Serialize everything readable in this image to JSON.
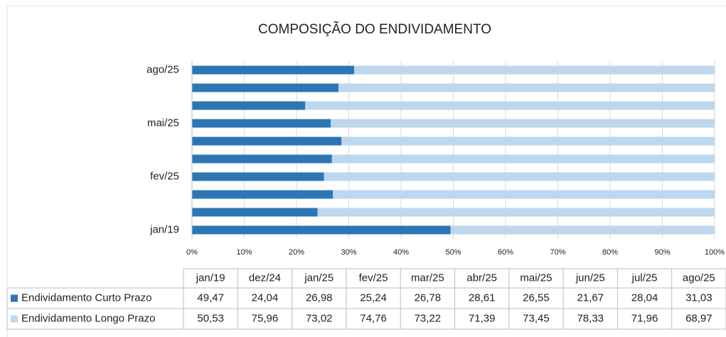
{
  "chart_data": {
    "type": "stacked_barh",
    "title": "COMPOSIÇÃO DO ENDIVIDAMENTO",
    "categories": [
      "jan/19",
      "dez/24",
      "jan/25",
      "fev/25",
      "mar/25",
      "abr/25",
      "mai/25",
      "jun/25",
      "jul/25",
      "ago/25"
    ],
    "series": [
      {
        "name": "Endividamento Curto Prazo",
        "color": "#2e75b6",
        "values": [
          49.47,
          24.04,
          26.98,
          25.24,
          26.78,
          28.61,
          26.55,
          21.67,
          28.04,
          31.03
        ],
        "value_labels": [
          "49,47",
          "24,04",
          "26,98",
          "25,24",
          "26,78",
          "28,61",
          "26,55",
          "21,67",
          "28,04",
          "31,03"
        ]
      },
      {
        "name": "Endividamento Longo Prazo",
        "color": "#bdd7ee",
        "values": [
          50.53,
          75.96,
          73.02,
          74.76,
          73.22,
          71.39,
          73.45,
          78.33,
          71.96,
          68.97
        ],
        "value_labels": [
          "50,53",
          "75,96",
          "73,02",
          "74,76",
          "73,22",
          "71,39",
          "73,45",
          "78,33",
          "71,96",
          "68,97"
        ]
      }
    ],
    "xlim": [
      0,
      100
    ],
    "xticks": [
      {
        "value": 0,
        "label": "0%"
      },
      {
        "value": 10,
        "label": "10%"
      },
      {
        "value": 20,
        "label": "20%"
      },
      {
        "value": 30,
        "label": "30%"
      },
      {
        "value": 40,
        "label": "40%"
      },
      {
        "value": 50,
        "label": "50%"
      },
      {
        "value": 60,
        "label": "60%"
      },
      {
        "value": 70,
        "label": "70%"
      },
      {
        "value": 80,
        "label": "80%"
      },
      {
        "value": 90,
        "label": "90%"
      },
      {
        "value": 100,
        "label": "100%"
      }
    ],
    "grid": true
  }
}
